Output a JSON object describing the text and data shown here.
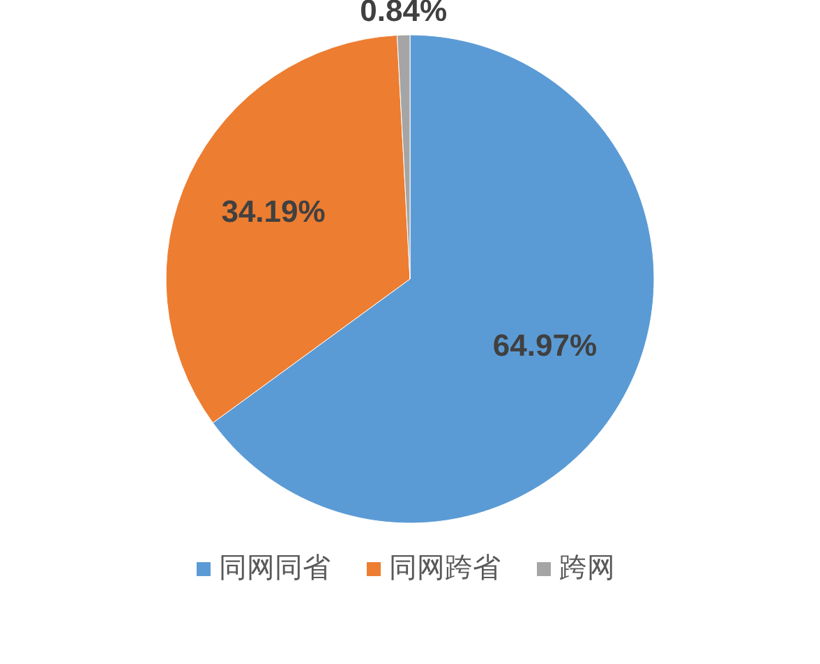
{
  "chart_data": {
    "type": "pie",
    "categories": [
      "同网同省",
      "同网跨省",
      "跨网"
    ],
    "values": [
      64.97,
      34.19,
      0.84
    ],
    "colors": [
      "#5b9bd5",
      "#ed7d31",
      "#a5a5a5"
    ],
    "value_labels": [
      "64.97%",
      "34.19%",
      "0.84%"
    ],
    "legend": "bottom"
  }
}
